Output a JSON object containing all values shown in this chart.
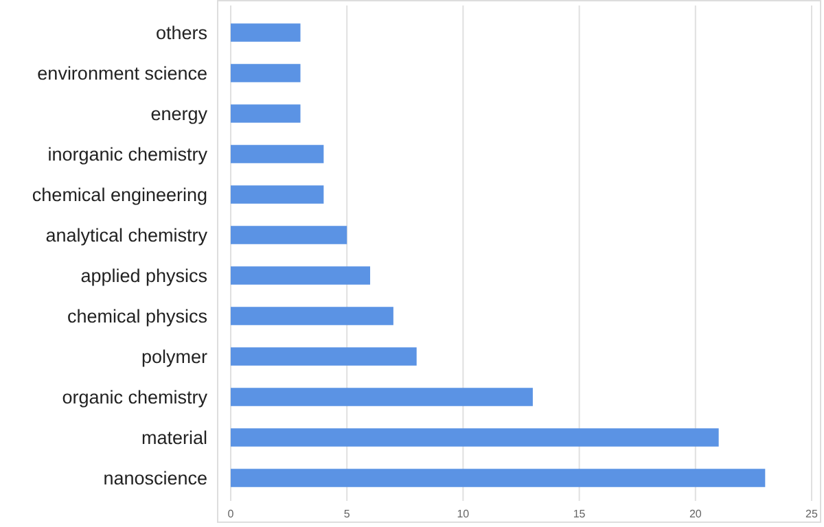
{
  "chart_data": {
    "type": "bar",
    "orientation": "horizontal",
    "categories": [
      "others",
      "environment science",
      "energy",
      "inorganic chemistry",
      "chemical engineering",
      "analytical chemistry",
      "applied physics",
      "chemical physics",
      "polymer",
      "organic chemistry",
      "material",
      "nanoscience"
    ],
    "values": [
      3,
      3,
      3,
      4,
      4,
      5,
      6,
      7,
      8,
      13,
      21,
      23
    ],
    "color": "#5b93e4",
    "xlim": [
      0,
      25
    ],
    "xticks": [
      0,
      5,
      10,
      15,
      20,
      25
    ],
    "grid": "x"
  }
}
